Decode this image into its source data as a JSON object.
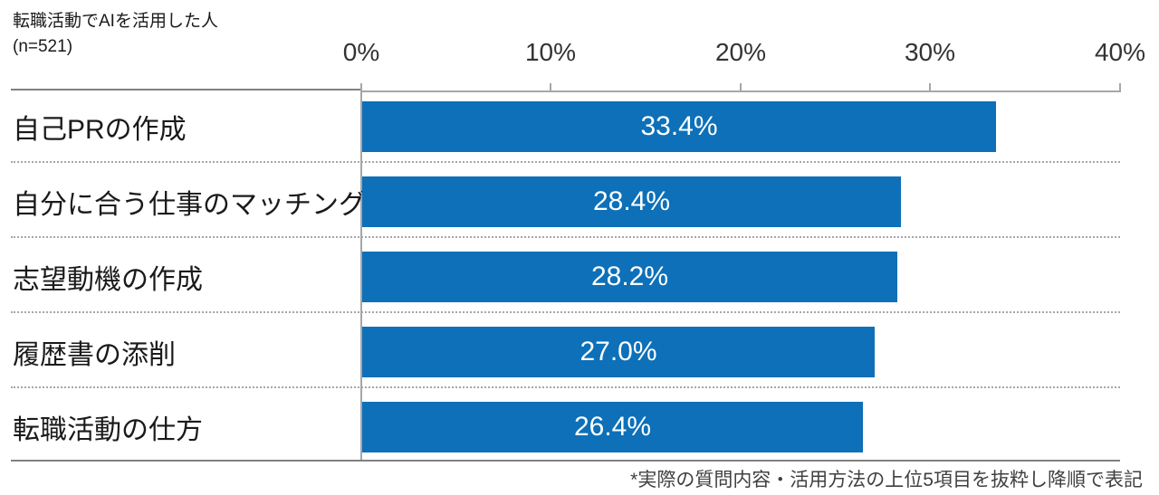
{
  "header": {
    "title_line1": "転職活動でAIを活用した人",
    "title_line2": "(n=521)"
  },
  "footnote": "*実際の質問内容・活用方法の上位5項目を抜粋し降順で表記",
  "colors": {
    "bar": "#0d70b8",
    "axis_line": "#a6a6a6",
    "table_border": "#808080",
    "value_label_text": "#ffffff"
  },
  "chart_data": {
    "type": "bar",
    "orientation": "horizontal",
    "title": "転職活動でAIを活用した人 (n=521)",
    "categories": [
      "自己PRの作成",
      "自分に合う仕事のマッチング",
      "志望動機の作成",
      "履歴書の添削",
      "転職活動の仕方"
    ],
    "values": [
      33.4,
      28.4,
      28.2,
      27.0,
      26.4
    ],
    "value_labels": [
      "33.4%",
      "28.4%",
      "28.2%",
      "27.0%",
      "26.4%"
    ],
    "xlim": [
      0,
      40
    ],
    "tick_labels": [
      "0%",
      "10%",
      "20%",
      "30%",
      "40%"
    ],
    "grid": false,
    "legend": "none",
    "sort_order": "descending",
    "annotation": "*実際の質問内容・活用方法の上位5項目を抜粋し降順で表記"
  }
}
